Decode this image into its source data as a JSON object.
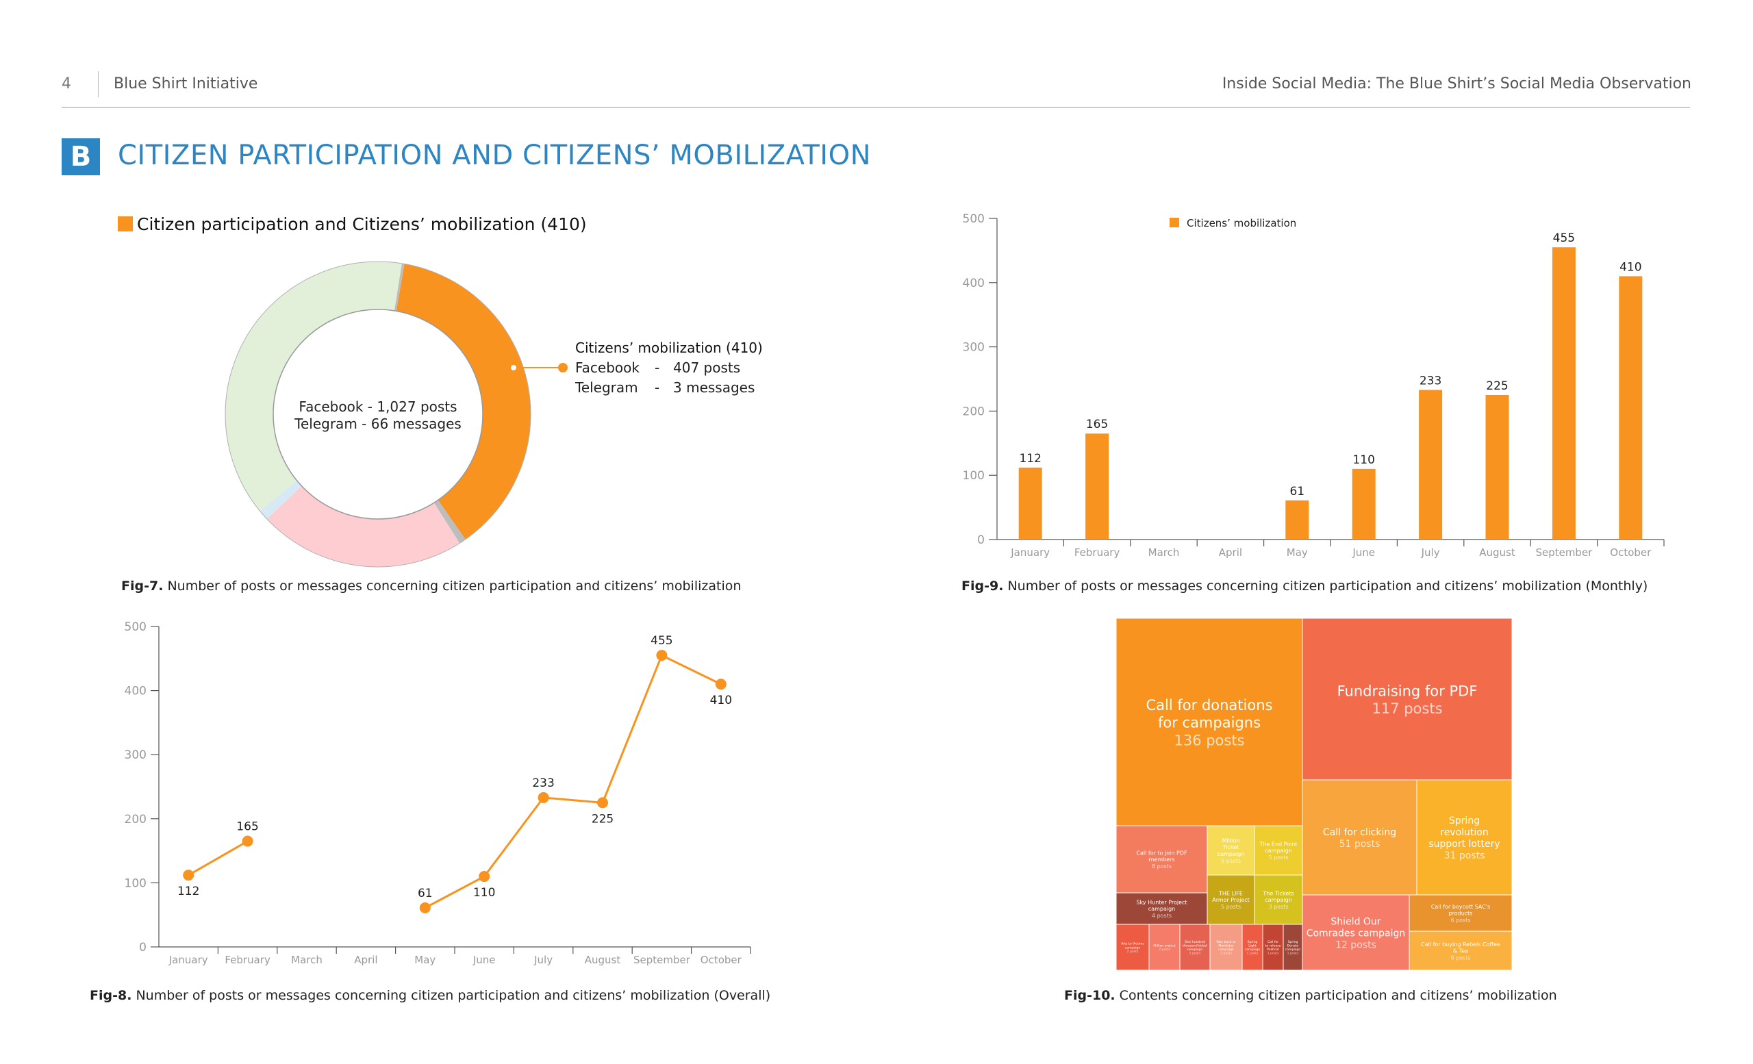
{
  "header": {
    "page_number": "4",
    "org": "Blue Shirt Initiative",
    "report_title": "Inside Social Media: The Blue Shirt’s Social Media Observation"
  },
  "section": {
    "badge": "B",
    "title": "CITIZEN PARTICIPATION AND CITIZENS’ MOBILIZATION"
  },
  "captions": {
    "fig7_label": "Fig-7.",
    "fig7_text": " Number of posts or messages concerning citizen participation and citizens’ mobilization",
    "fig9_label": "Fig-9.",
    "fig9_text": " Number of posts or messages concerning citizen participation and citizens’ mobilization  (Monthly)",
    "fig8_label": "Fig-8.",
    "fig8_text": " Number of posts or messages concerning citizen participation and citizens’ mobilization (Overall)",
    "fig10_label": "Fig-10.",
    "fig10_text": " Contents concerning citizen participation and citizens’ mobilization"
  },
  "colors": {
    "orange": "#f7931e",
    "light_green": "#e2efd9",
    "pink": "#fdcdd2",
    "light_blue": "#d6e9f5",
    "gray": "#bdbdbd",
    "blue": "#2d86c4"
  },
  "chart_data": [
    {
      "id": "fig7",
      "type": "pie",
      "title": "Citizen participation and Citizens’ mobilization (410)",
      "center_lines": [
        "Facebook - 1,027 posts",
        "Telegram - 66 messages"
      ],
      "callout": {
        "title": "Citizens’ mobilization (410)",
        "rows": [
          {
            "platform": "Facebook",
            "sep": "-",
            "value": "407 posts"
          },
          {
            "platform": "Telegram",
            "sep": "-",
            "value": "3 messages"
          }
        ]
      },
      "slices": [
        {
          "value": 410,
          "color": "#f7931e"
        },
        {
          "value": 8,
          "color": "#bdbdbd"
        },
        {
          "value": 240,
          "color": "#fdcdd2"
        },
        {
          "value": 12,
          "color": "#d6e9f5"
        },
        {
          "value": 420,
          "color": "#e2efd9"
        },
        {
          "value": 3,
          "color": "#bdbdbd"
        }
      ]
    },
    {
      "id": "fig9",
      "type": "bar",
      "legend": "Citizens’ mobilization",
      "legend_position": "top",
      "categories": [
        "January",
        "February",
        "March",
        "April",
        "May",
        "June",
        "July",
        "August",
        "September",
        "October"
      ],
      "values": [
        112,
        165,
        null,
        null,
        61,
        110,
        233,
        225,
        455,
        410
      ],
      "yticks": [
        0,
        100,
        200,
        300,
        400,
        500
      ],
      "ylim": [
        0,
        500
      ]
    },
    {
      "id": "fig8",
      "type": "line",
      "categories": [
        "January",
        "February",
        "March",
        "April",
        "May",
        "June",
        "July",
        "August",
        "September",
        "October"
      ],
      "values": [
        112,
        165,
        null,
        null,
        61,
        110,
        233,
        225,
        455,
        410
      ],
      "yticks": [
        0,
        100,
        200,
        300,
        400,
        500
      ],
      "ylim": [
        0,
        500
      ]
    },
    {
      "id": "fig10",
      "type": "treemap",
      "items": [
        {
          "label": "Call for donations for campaigns",
          "value": "136 posts",
          "color": "#f7931e"
        },
        {
          "label": "Fundraising for PDF",
          "value": "117 posts",
          "color": "#f26b4b"
        },
        {
          "label": "Call for clicking",
          "value": "51 posts",
          "color": "#f7a53c"
        },
        {
          "label": "Spring revolution support lottery",
          "value": "31 posts",
          "color": "#fbb22b"
        },
        {
          "label": "Call for to join PDF members",
          "value": "8 posts",
          "color": "#f47c5e"
        },
        {
          "label": "Million Ticket campaign",
          "value": "5 posts",
          "color": "#f6dc56"
        },
        {
          "label": "The End Point campaign",
          "value": "5 posts",
          "color": "#eecd2e"
        },
        {
          "label": "THE LIFE Armor Project",
          "value": "5 posts",
          "color": "#c8a716"
        },
        {
          "label": "The Tickets campaign",
          "value": "3 posts",
          "color": "#d6c21e"
        },
        {
          "label": "Sky Hunter Project campaign",
          "value": "4 posts",
          "color": "#9c4738"
        },
        {
          "label": "Shield Our Comrades campaign",
          "value": "12 posts",
          "color": "#f47c68"
        },
        {
          "label": "Call for boycott SAC's products",
          "value": "6 posts",
          "color": "#e8932e"
        },
        {
          "label": "Call for buying Rebels Coffee & Tea",
          "value": "6 posts",
          "color": "#fbb140"
        },
        {
          "label": "Arts to Victims campaign",
          "value": "2 posts",
          "color": "#ee5b43"
        },
        {
          "label": "Million project",
          "value": "2 posts",
          "color": "#f47c68"
        },
        {
          "label": "One hundred thousand ticket campaign",
          "value": "1 posts",
          "color": "#e56251"
        },
        {
          "label": "Way back to Mandalay campaign",
          "value": "2 posts",
          "color": "#f59c84"
        },
        {
          "label": "Spring Light campaign",
          "value": "1 posts",
          "color": "#ee5b43"
        },
        {
          "label": "Call for to release Political",
          "value": "1 posts",
          "color": "#c24432"
        },
        {
          "label": "Spring Donate campaign",
          "value": "1 posts",
          "color": "#9c4738"
        }
      ]
    }
  ]
}
